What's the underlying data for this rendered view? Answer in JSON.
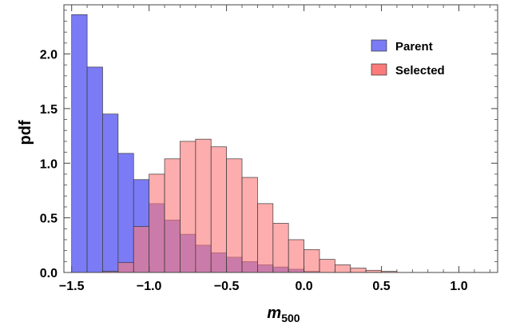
{
  "chart_data": {
    "type": "bar",
    "title": "",
    "xlabel": "m",
    "xlabel_sub": "500",
    "ylabel": "pdf",
    "xlim": [
      -1.55,
      1.25
    ],
    "ylim": [
      0,
      2.45
    ],
    "bin_width": 0.1,
    "x_ticks": [
      -1.5,
      -1.0,
      -0.5,
      0.0,
      0.5,
      1.0
    ],
    "x_tick_labels": [
      "−1.5",
      "−1.0",
      "−0.5",
      "0.0",
      "0.5",
      "1.0"
    ],
    "y_ticks": [
      0,
      0.5,
      1.0,
      1.5,
      2.0
    ],
    "y_tick_labels": [
      "0.0",
      "0.5",
      "1.0",
      "1.5",
      "2.0"
    ],
    "legend_position": "top-right",
    "series": [
      {
        "name": "Parent",
        "color": "#7b7bf5",
        "bin_starts": [
          -1.5,
          -1.4,
          -1.3,
          -1.2,
          -1.1,
          -1.0,
          -0.9,
          -0.8,
          -0.7,
          -0.6,
          -0.5,
          -0.4,
          -0.3,
          -0.2,
          -0.1,
          0.0
        ],
        "values": [
          2.36,
          1.88,
          1.45,
          1.09,
          0.85,
          0.63,
          0.48,
          0.35,
          0.25,
          0.18,
          0.14,
          0.1,
          0.07,
          0.05,
          0.03,
          0.01
        ]
      },
      {
        "name": "Selected",
        "color": "#fb7a7a",
        "bin_starts": [
          -1.3,
          -1.2,
          -1.1,
          -1.0,
          -0.9,
          -0.8,
          -0.7,
          -0.6,
          -0.5,
          -0.4,
          -0.3,
          -0.2,
          -0.1,
          0.0,
          0.1,
          0.2,
          0.3,
          0.4,
          0.5
        ],
        "values": [
          0.01,
          0.09,
          0.42,
          0.9,
          1.04,
          1.2,
          1.22,
          1.15,
          1.04,
          0.87,
          0.63,
          0.45,
          0.3,
          0.21,
          0.12,
          0.07,
          0.04,
          0.02,
          0.01
        ]
      }
    ]
  }
}
